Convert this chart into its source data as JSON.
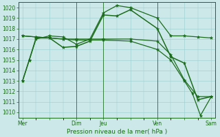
{
  "xlabel": "Pression niveau de la mer( hPa )",
  "ylim": [
    1009.5,
    1020.5
  ],
  "yticks": [
    1010,
    1011,
    1012,
    1013,
    1014,
    1015,
    1016,
    1017,
    1018,
    1019,
    1020
  ],
  "bg_color": "#cce8e8",
  "line_color": "#1a6b1a",
  "grid_color": "#99cccc",
  "xtick_labels": [
    "Mer",
    "",
    "Dim",
    "Jeu",
    "",
    "Ven",
    "",
    "Sam"
  ],
  "xtick_positions": [
    0,
    1,
    2,
    3,
    4,
    5,
    6,
    7
  ],
  "line1_x": [
    0,
    0.25,
    0.5,
    1.0,
    1.5,
    2.0,
    2.5,
    3.0,
    3.5,
    4.0,
    5.0,
    5.5,
    6.0,
    6.5,
    7.0
  ],
  "line1_y": [
    1013,
    1015,
    1017,
    1017.3,
    1017.2,
    1016.5,
    1017.0,
    1019.5,
    1020.2,
    1020.0,
    1019.0,
    1017.3,
    1017.3,
    1017.2,
    1017.1
  ],
  "line2_x": [
    0,
    0.25,
    0.5,
    1.0,
    1.5,
    2.0,
    2.5,
    3.0,
    3.5,
    4.0,
    5.0,
    5.5,
    6.0,
    6.5,
    7.0
  ],
  "line2_y": [
    1013,
    1015,
    1017.1,
    1017.1,
    1016.2,
    1016.3,
    1016.8,
    1019.3,
    1019.2,
    1019.8,
    1018.0,
    1015.3,
    1014.7,
    1011.2,
    1011.5
  ],
  "line3_x": [
    0,
    0.5,
    1.0,
    1.5,
    2.0,
    3.0,
    4.0,
    5.0,
    5.5,
    6.0,
    6.5,
    7.0
  ],
  "line3_y": [
    1017.3,
    1017.2,
    1017.1,
    1017.0,
    1017.0,
    1017.0,
    1017.0,
    1016.8,
    1015.5,
    1013.1,
    1011.5,
    1011.5
  ],
  "line4_x": [
    0,
    0.5,
    1.0,
    1.5,
    2.0,
    3.0,
    4.0,
    5.0,
    5.5,
    6.0,
    6.3,
    6.6,
    7.0
  ],
  "line4_y": [
    1017.3,
    1017.2,
    1017.1,
    1017.0,
    1016.9,
    1016.9,
    1016.8,
    1016.0,
    1015.0,
    1013.0,
    1011.8,
    1009.7,
    1011.5
  ],
  "vline_positions": [
    2,
    3,
    5
  ],
  "marker_size": 3.5,
  "linewidth": 0.9
}
